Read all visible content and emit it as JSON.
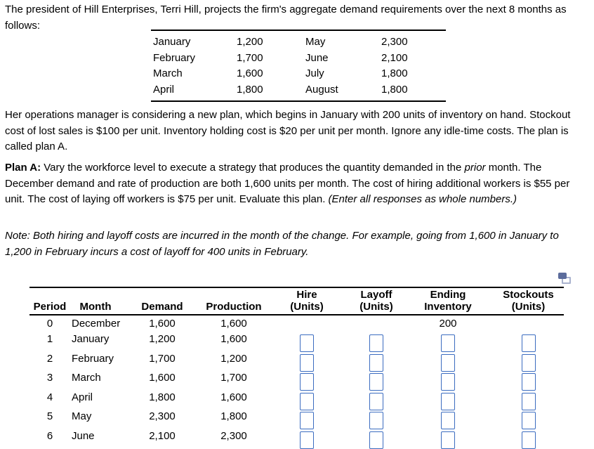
{
  "intro": {
    "text": "The president of Hill Enterprises, Terri Hill, projects the firm's aggregate demand requirements over the next 8 months as follows:"
  },
  "demand_table": {
    "rows": [
      {
        "month_left": "January",
        "value_left": "1,200",
        "month_right": "May",
        "value_right": "2,300"
      },
      {
        "month_left": "February",
        "value_left": "1,700",
        "month_right": "June",
        "value_right": "2,100"
      },
      {
        "month_left": "March",
        "value_left": "1,600",
        "month_right": "July",
        "value_right": "1,800"
      },
      {
        "month_left": "April",
        "value_left": "1,800",
        "month_right": "August",
        "value_right": "1,800"
      }
    ]
  },
  "paragraphs": {
    "operations": "Her operations manager is considering a new plan, which begins in January with 200 units of inventory on hand. Stockout cost of lost sales is $100 per unit. Inventory holding cost is $20 per unit per month. Ignore any idle-time costs. The plan is called plan A.",
    "plan_a_label": "Plan A:",
    "plan_a_part1": " Vary the workforce level to execute a strategy that produces the quantity demanded in the ",
    "plan_a_italic": "prior",
    "plan_a_part2": " month. The December demand and rate of production are both 1,600 units per month. The cost of hiring additional workers is $55 per unit. The cost of laying off workers is $75 per unit. Evaluate this plan. ",
    "plan_a_parenthetical": "(Enter all responses as whole numbers.)",
    "note": "Note: Both hiring and layoff costs are incurred in the month of the change. For example, going from 1,600 in January to 1,200 in February incurs a cost of layoff for 400 units in February."
  },
  "icons": {
    "copy_icon": "duplicate-window"
  },
  "colors": {
    "input_border": "#3b6cc0",
    "icon_front": "#5c6c9c",
    "icon_back_border": "#a9b2ce",
    "text": "#000000",
    "background": "#ffffff"
  },
  "worksheet": {
    "headers": {
      "period": "Period",
      "month": "Month",
      "demand": "Demand",
      "production": "Production",
      "hire_line1": "Hire",
      "hire_line2": "(Units)",
      "layoff_line1": "Layoff",
      "layoff_line2": "(Units)",
      "ending_line1": "Ending",
      "ending_line2": "Inventory",
      "stockouts_line1": "Stockouts",
      "stockouts_line2": "(Units)"
    },
    "rows": [
      {
        "period": "0",
        "month": "December",
        "demand": "1,600",
        "production": "1,600",
        "ending_inventory": "200"
      },
      {
        "period": "1",
        "month": "January",
        "demand": "1,200",
        "production": "1,600"
      },
      {
        "period": "2",
        "month": "February",
        "demand": "1,700",
        "production": "1,200"
      },
      {
        "period": "3",
        "month": "March",
        "demand": "1,600",
        "production": "1,700"
      },
      {
        "period": "4",
        "month": "April",
        "demand": "1,800",
        "production": "1,600"
      },
      {
        "period": "5",
        "month": "May",
        "demand": "2,300",
        "production": "1,800"
      },
      {
        "period": "6",
        "month": "June",
        "demand": "2,100",
        "production": "2,300"
      }
    ]
  }
}
